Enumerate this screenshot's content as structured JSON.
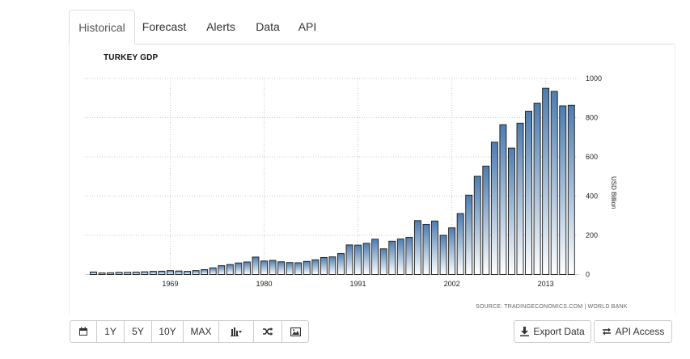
{
  "tabs": [
    {
      "label": "Historical",
      "active": true
    },
    {
      "label": "Forecast",
      "active": false
    },
    {
      "label": "Alerts",
      "active": false
    },
    {
      "label": "Data",
      "active": false
    },
    {
      "label": "API",
      "active": false
    }
  ],
  "toolbar": {
    "calendar_icon": "calendar-icon",
    "ranges": [
      "1Y",
      "5Y",
      "10Y",
      "MAX"
    ],
    "chart_type_icon": "bar-chart-icon",
    "shuffle_icon": "shuffle-icon",
    "image_icon": "image-icon",
    "export_label": "Export Data",
    "api_label": "API Access"
  },
  "colors": {
    "bar_top": "#4d7db0",
    "bar_bottom": "#ffffff",
    "bar_stroke": "#1a1a1a",
    "grid": "#c8c8c8"
  },
  "chart_data": {
    "type": "bar",
    "title": "TURKEY GDP",
    "ylabel": "USD Billion",
    "source": "SOURCE: TRADINGECONOMICS.COM | WORLD BANK",
    "ylim": [
      0,
      1000
    ],
    "y_ticks": [
      0,
      200,
      400,
      600,
      800,
      1000
    ],
    "x_ticks": [
      1969,
      1980,
      1991,
      2002,
      2013
    ],
    "grid": true,
    "years": [
      1960,
      1961,
      1962,
      1963,
      1964,
      1965,
      1966,
      1967,
      1968,
      1969,
      1970,
      1971,
      1972,
      1973,
      1974,
      1975,
      1976,
      1977,
      1978,
      1979,
      1980,
      1981,
      1982,
      1983,
      1984,
      1985,
      1986,
      1987,
      1988,
      1989,
      1990,
      1991,
      1992,
      1993,
      1994,
      1995,
      1996,
      1997,
      1998,
      1999,
      2000,
      2001,
      2002,
      2003,
      2004,
      2005,
      2006,
      2007,
      2008,
      2009,
      2010,
      2011,
      2012,
      2013,
      2014,
      2015,
      2016
    ],
    "values": [
      13,
      8,
      9,
      11,
      11,
      12,
      14,
      16,
      17,
      20,
      18,
      16,
      20,
      25,
      34,
      45,
      51,
      59,
      64,
      89,
      69,
      72,
      65,
      61,
      60,
      67,
      75,
      87,
      90,
      107,
      151,
      150,
      159,
      180,
      131,
      170,
      181,
      190,
      275,
      256,
      273,
      200,
      238,
      311,
      405,
      501,
      553,
      675,
      764,
      645,
      772,
      833,
      874,
      950,
      934,
      860,
      863
    ]
  }
}
